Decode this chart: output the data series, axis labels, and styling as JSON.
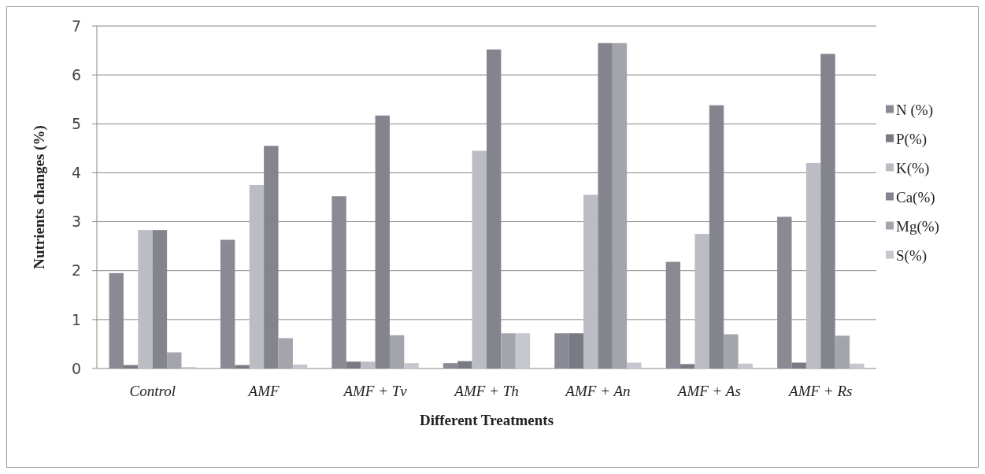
{
  "chart_data": {
    "type": "bar",
    "xlabel": "Different Treatments",
    "ylabel": "Nutrients changes (%)",
    "categories": [
      "Control",
      "AMF",
      "AMF + Tv",
      "AMF + Th",
      "AMF + An",
      "AMF + As",
      "AMF + Rs"
    ],
    "series": [
      {
        "name": "N (%)",
        "color": "#8a8a94",
        "values": [
          1.95,
          2.63,
          3.52,
          0.11,
          0.72,
          2.18,
          3.1
        ]
      },
      {
        "name": "P(%)",
        "color": "#7a7a84",
        "values": [
          0.07,
          0.07,
          0.14,
          0.15,
          0.72,
          0.09,
          0.12
        ]
      },
      {
        "name": "K(%)",
        "color": "#bcbcc4",
        "values": [
          2.83,
          3.75,
          0.14,
          4.45,
          3.55,
          2.75,
          4.2
        ]
      },
      {
        "name": "Ca(%)",
        "color": "#84848e",
        "values": [
          2.83,
          4.55,
          5.17,
          6.52,
          6.65,
          5.38,
          6.43
        ]
      },
      {
        "name": "Mg(%)",
        "color": "#a4a4ac",
        "values": [
          0.33,
          0.62,
          0.68,
          0.72,
          6.65,
          0.7,
          0.67
        ]
      },
      {
        "name": "S(%)",
        "color": "#c6c6ce",
        "values": [
          0.03,
          0.08,
          0.11,
          0.72,
          0.12,
          0.1,
          0.1
        ]
      }
    ],
    "ylim": [
      0,
      7
    ],
    "yticks": [
      0,
      1,
      2,
      3,
      4,
      5,
      6,
      7
    ],
    "grid": "y",
    "legend": "right"
  }
}
